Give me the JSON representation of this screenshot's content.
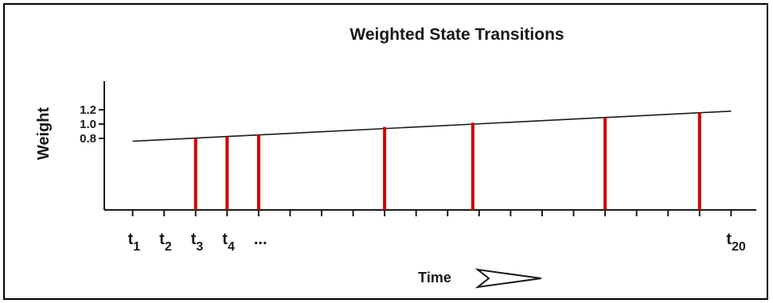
{
  "chart_data": {
    "type": "line",
    "title": "Weighted State Transitions",
    "xlabel": "Time",
    "ylabel": "Weight",
    "x_tick_labels": [
      {
        "base": "t",
        "sub": "1",
        "x": 1
      },
      {
        "base": "t",
        "sub": "2",
        "x": 2
      },
      {
        "base": "t",
        "sub": "3",
        "x": 3
      },
      {
        "base": "t",
        "sub": "4",
        "x": 4
      },
      {
        "base": "...",
        "sub": "",
        "x": 5
      },
      {
        "base": "t",
        "sub": "20",
        "x": 20
      }
    ],
    "y_ticks": [
      {
        "label": "0.8",
        "value": 0.8
      },
      {
        "label": "1.0",
        "value": 1.0
      },
      {
        "label": "1.2",
        "value": 1.2
      }
    ],
    "xlim": [
      0.1,
      20.8
    ],
    "ylim": [
      -0.2,
      1.6
    ],
    "x_tick_positions": [
      1,
      2,
      3,
      4,
      5,
      6,
      7,
      8,
      9,
      10,
      11,
      12,
      13,
      14,
      15,
      16,
      17,
      18,
      19,
      20
    ],
    "trend_line": {
      "x": [
        1,
        20
      ],
      "y": [
        0.76,
        1.18
      ]
    },
    "series": [
      {
        "marks": "vertical-lines",
        "color": "#cc0000",
        "x": [
          3,
          4,
          5,
          9,
          11.8,
          16,
          19
        ],
        "y": [
          0.8,
          0.82,
          0.85,
          0.96,
          1.02,
          1.09,
          1.16
        ]
      }
    ],
    "grid": false,
    "legend": "none",
    "colors": {
      "axis": "#1a1a1a",
      "trend": "#1a1a1a",
      "marks": "#cc0000",
      "background": "#ffffff"
    }
  }
}
